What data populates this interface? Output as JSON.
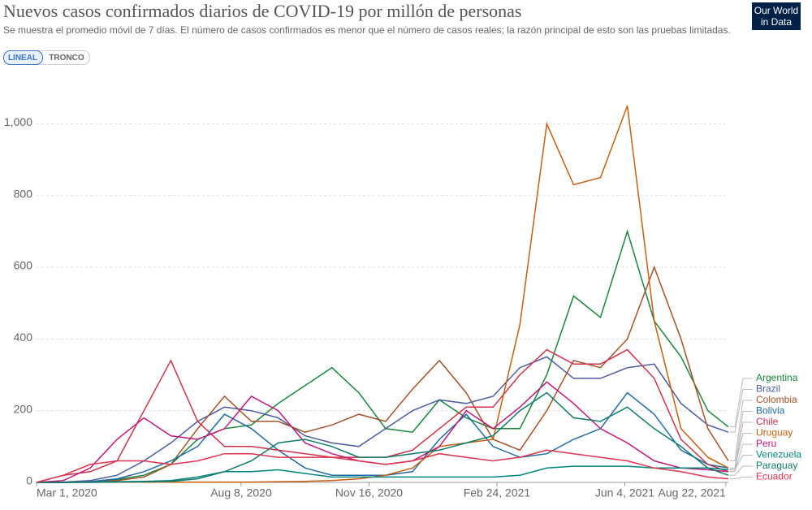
{
  "logo": [
    "Our World",
    "in Data"
  ],
  "controls": [
    "LINEAL",
    "TRONCO"
  ],
  "chart_data": {
    "type": "line",
    "title": "Nuevos casos confirmados diarios de COVID-19 por millón de personas",
    "subtitle": "Se muestra el promedio móvil de 7 días. El número de casos confirmados es menor que el número de casos reales; la razón principal de esto son las pruebas limitadas.",
    "x": [
      "2020-03-01",
      "2020-03-22",
      "2020-04-12",
      "2020-05-03",
      "2020-05-24",
      "2020-06-14",
      "2020-07-05",
      "2020-07-26",
      "2020-08-16",
      "2020-09-06",
      "2020-09-27",
      "2020-10-18",
      "2020-11-08",
      "2020-11-29",
      "2020-12-20",
      "2021-01-10",
      "2021-01-31",
      "2021-02-21",
      "2021-03-14",
      "2021-04-04",
      "2021-04-25",
      "2021-05-16",
      "2021-06-06",
      "2021-06-27",
      "2021-07-18",
      "2021-08-08",
      "2021-08-24"
    ],
    "xlim": [
      "2020-03-01",
      "2021-08-24"
    ],
    "xticks": [
      {
        "value": "2020-03-01",
        "label": "Mar 1, 2020"
      },
      {
        "value": "2020-08-08",
        "label": "Aug 8, 2020"
      },
      {
        "value": "2020-11-16",
        "label": "Nov 16, 2020"
      },
      {
        "value": "2021-02-24",
        "label": "Feb 24, 2021"
      },
      {
        "value": "2021-06-04",
        "label": "Jun 4, 2021"
      },
      {
        "value": "2021-08-22",
        "label": "Aug 22, 2021"
      }
    ],
    "ylim": [
      0,
      1130
    ],
    "yticks": [
      0,
      200,
      400,
      600,
      800,
      {
        "value": 1000,
        "label": "1,000"
      }
    ],
    "grid": true,
    "legend": "right",
    "series": [
      {
        "name": "Argentina",
        "color": "#18853b",
        "values": [
          0,
          0,
          2,
          8,
          20,
          50,
          120,
          150,
          160,
          220,
          270,
          320,
          250,
          150,
          140,
          230,
          180,
          150,
          150,
          300,
          520,
          460,
          700,
          450,
          350,
          200,
          155
        ]
      },
      {
        "name": "Brazil",
        "color": "#4c5ca0",
        "values": [
          0,
          1,
          5,
          20,
          60,
          110,
          170,
          210,
          200,
          180,
          130,
          110,
          100,
          150,
          200,
          230,
          220,
          240,
          320,
          350,
          290,
          290,
          320,
          330,
          220,
          160,
          140
        ]
      },
      {
        "name": "Colombia",
        "color": "#a5522a",
        "values": [
          0,
          0,
          2,
          5,
          15,
          50,
          150,
          240,
          170,
          170,
          140,
          160,
          190,
          170,
          260,
          340,
          250,
          120,
          90,
          200,
          340,
          320,
          400,
          600,
          400,
          150,
          60
        ]
      },
      {
        "name": "Bolivia",
        "color": "#1f6aa5",
        "values": [
          0,
          0,
          2,
          10,
          30,
          60,
          100,
          190,
          150,
          90,
          40,
          20,
          20,
          20,
          30,
          120,
          190,
          100,
          70,
          80,
          120,
          150,
          250,
          190,
          90,
          50,
          40
        ]
      },
      {
        "name": "Chile",
        "color": "#d0314a",
        "values": [
          0,
          20,
          30,
          60,
          200,
          340,
          170,
          100,
          100,
          90,
          80,
          70,
          70,
          70,
          90,
          150,
          210,
          210,
          300,
          370,
          330,
          330,
          370,
          290,
          120,
          50,
          30
        ]
      },
      {
        "name": "Uruguay",
        "color": "#c65f10",
        "values": [
          0,
          0,
          1,
          1,
          1,
          1,
          1,
          1,
          1,
          2,
          3,
          5,
          10,
          20,
          40,
          100,
          110,
          120,
          440,
          1000,
          830,
          850,
          1050,
          450,
          150,
          70,
          40
        ]
      },
      {
        "name": "Peru",
        "color": "#c2187a",
        "values": [
          0,
          5,
          40,
          120,
          180,
          130,
          120,
          150,
          240,
          200,
          110,
          80,
          60,
          50,
          60,
          100,
          200,
          150,
          210,
          280,
          220,
          150,
          110,
          60,
          40,
          35,
          30
        ]
      },
      {
        "name": "Venezuela",
        "color": "#00847e",
        "values": [
          0,
          0,
          1,
          2,
          3,
          5,
          15,
          30,
          30,
          35,
          25,
          15,
          15,
          15,
          15,
          15,
          15,
          15,
          20,
          40,
          45,
          45,
          45,
          40,
          40,
          40,
          35
        ]
      },
      {
        "name": "Paraguay",
        "color": "#0e7a6a",
        "values": [
          0,
          0,
          0,
          1,
          2,
          3,
          10,
          30,
          60,
          110,
          120,
          100,
          70,
          70,
          80,
          90,
          110,
          130,
          200,
          250,
          180,
          170,
          210,
          150,
          100,
          40,
          20
        ]
      },
      {
        "name": "Ecuador",
        "color": "#e0334e",
        "values": [
          0,
          20,
          50,
          60,
          60,
          50,
          60,
          80,
          80,
          70,
          70,
          70,
          60,
          50,
          60,
          80,
          70,
          60,
          70,
          90,
          80,
          70,
          60,
          40,
          30,
          15,
          10
        ]
      }
    ]
  }
}
